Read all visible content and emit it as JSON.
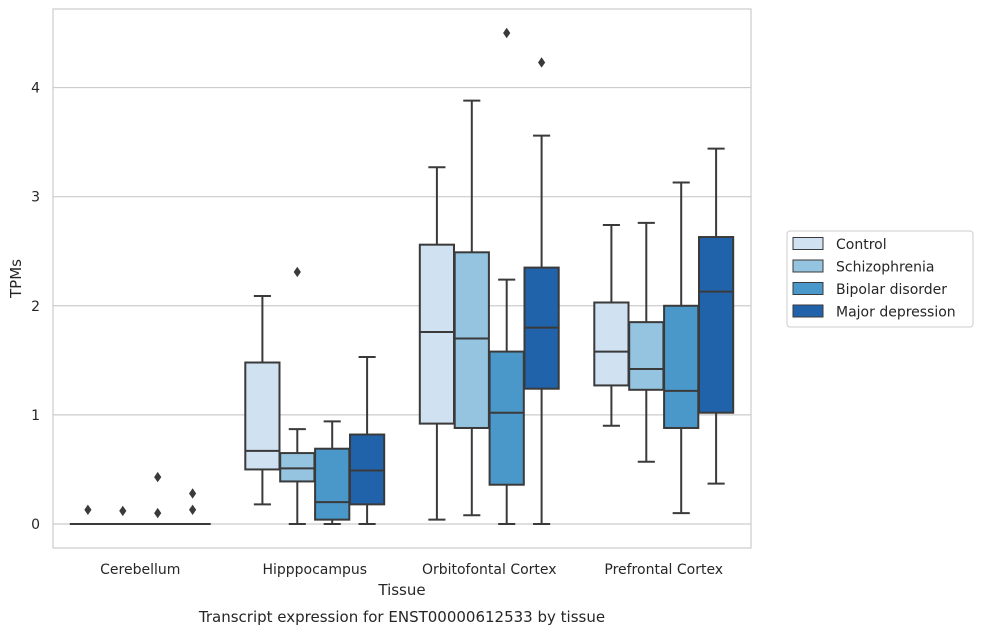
{
  "chart_data": {
    "type": "box",
    "title": "",
    "caption": "Transcript expression for ENST00000612533 by tissue",
    "xlabel": "Tissue",
    "ylabel": "TPMs",
    "ylim": [
      -0.22,
      4.72
    ],
    "yticks": [
      0,
      1,
      2,
      3,
      4
    ],
    "grid": "horizontal",
    "legend_position": "right",
    "categories": [
      "Cerebellum",
      "Hipppocampus",
      "Orbitofontal Cortex",
      "Prefrontal Cortex"
    ],
    "series": [
      {
        "name": "Control",
        "color": "#d0e1f2",
        "boxes": [
          {
            "whislo": 0,
            "q1": 0,
            "med": 0,
            "q3": 0,
            "whishi": 0,
            "fliers": [
              0.13
            ]
          },
          {
            "whislo": 0.18,
            "q1": 0.5,
            "med": 0.67,
            "q3": 1.48,
            "whishi": 2.09,
            "fliers": []
          },
          {
            "whislo": 0.04,
            "q1": 0.92,
            "med": 1.76,
            "q3": 2.56,
            "whishi": 3.27,
            "fliers": []
          },
          {
            "whislo": 0.9,
            "q1": 1.27,
            "med": 1.58,
            "q3": 2.03,
            "whishi": 2.74,
            "fliers": []
          }
        ]
      },
      {
        "name": "Schizophrenia",
        "color": "#94c4df",
        "boxes": [
          {
            "whislo": 0,
            "q1": 0,
            "med": 0,
            "q3": 0,
            "whishi": 0,
            "fliers": [
              0.12
            ]
          },
          {
            "whislo": 0,
            "q1": 0.39,
            "med": 0.51,
            "q3": 0.65,
            "whishi": 0.87,
            "fliers": [
              2.31
            ]
          },
          {
            "whislo": 0.08,
            "q1": 0.88,
            "med": 1.7,
            "q3": 2.49,
            "whishi": 3.88,
            "fliers": []
          },
          {
            "whislo": 0.57,
            "q1": 1.23,
            "med": 1.42,
            "q3": 1.85,
            "whishi": 2.76,
            "fliers": []
          }
        ]
      },
      {
        "name": "Bipolar disorder",
        "color": "#4a98c9",
        "boxes": [
          {
            "whislo": 0,
            "q1": 0,
            "med": 0,
            "q3": 0,
            "whishi": 0,
            "fliers": [
              0.1,
              0.43
            ]
          },
          {
            "whislo": 0,
            "q1": 0.04,
            "med": 0.2,
            "q3": 0.69,
            "whishi": 0.94,
            "fliers": []
          },
          {
            "whislo": 0,
            "q1": 0.36,
            "med": 1.02,
            "q3": 1.58,
            "whishi": 2.24,
            "fliers": [
              4.5
            ]
          },
          {
            "whislo": 0.1,
            "q1": 0.88,
            "med": 1.22,
            "q3": 2.0,
            "whishi": 3.13,
            "fliers": []
          }
        ]
      },
      {
        "name": "Major depression",
        "color": "#2163aa",
        "boxes": [
          {
            "whislo": 0,
            "q1": 0,
            "med": 0,
            "q3": 0,
            "whishi": 0,
            "fliers": [
              0.13,
              0.28
            ]
          },
          {
            "whislo": 0,
            "q1": 0.18,
            "med": 0.49,
            "q3": 0.82,
            "whishi": 1.53,
            "fliers": []
          },
          {
            "whislo": 0,
            "q1": 1.24,
            "med": 1.8,
            "q3": 2.35,
            "whishi": 3.56,
            "fliers": [
              4.23
            ]
          },
          {
            "whislo": 0.37,
            "q1": 1.02,
            "med": 2.13,
            "q3": 2.63,
            "whishi": 3.44,
            "fliers": []
          }
        ]
      }
    ]
  }
}
